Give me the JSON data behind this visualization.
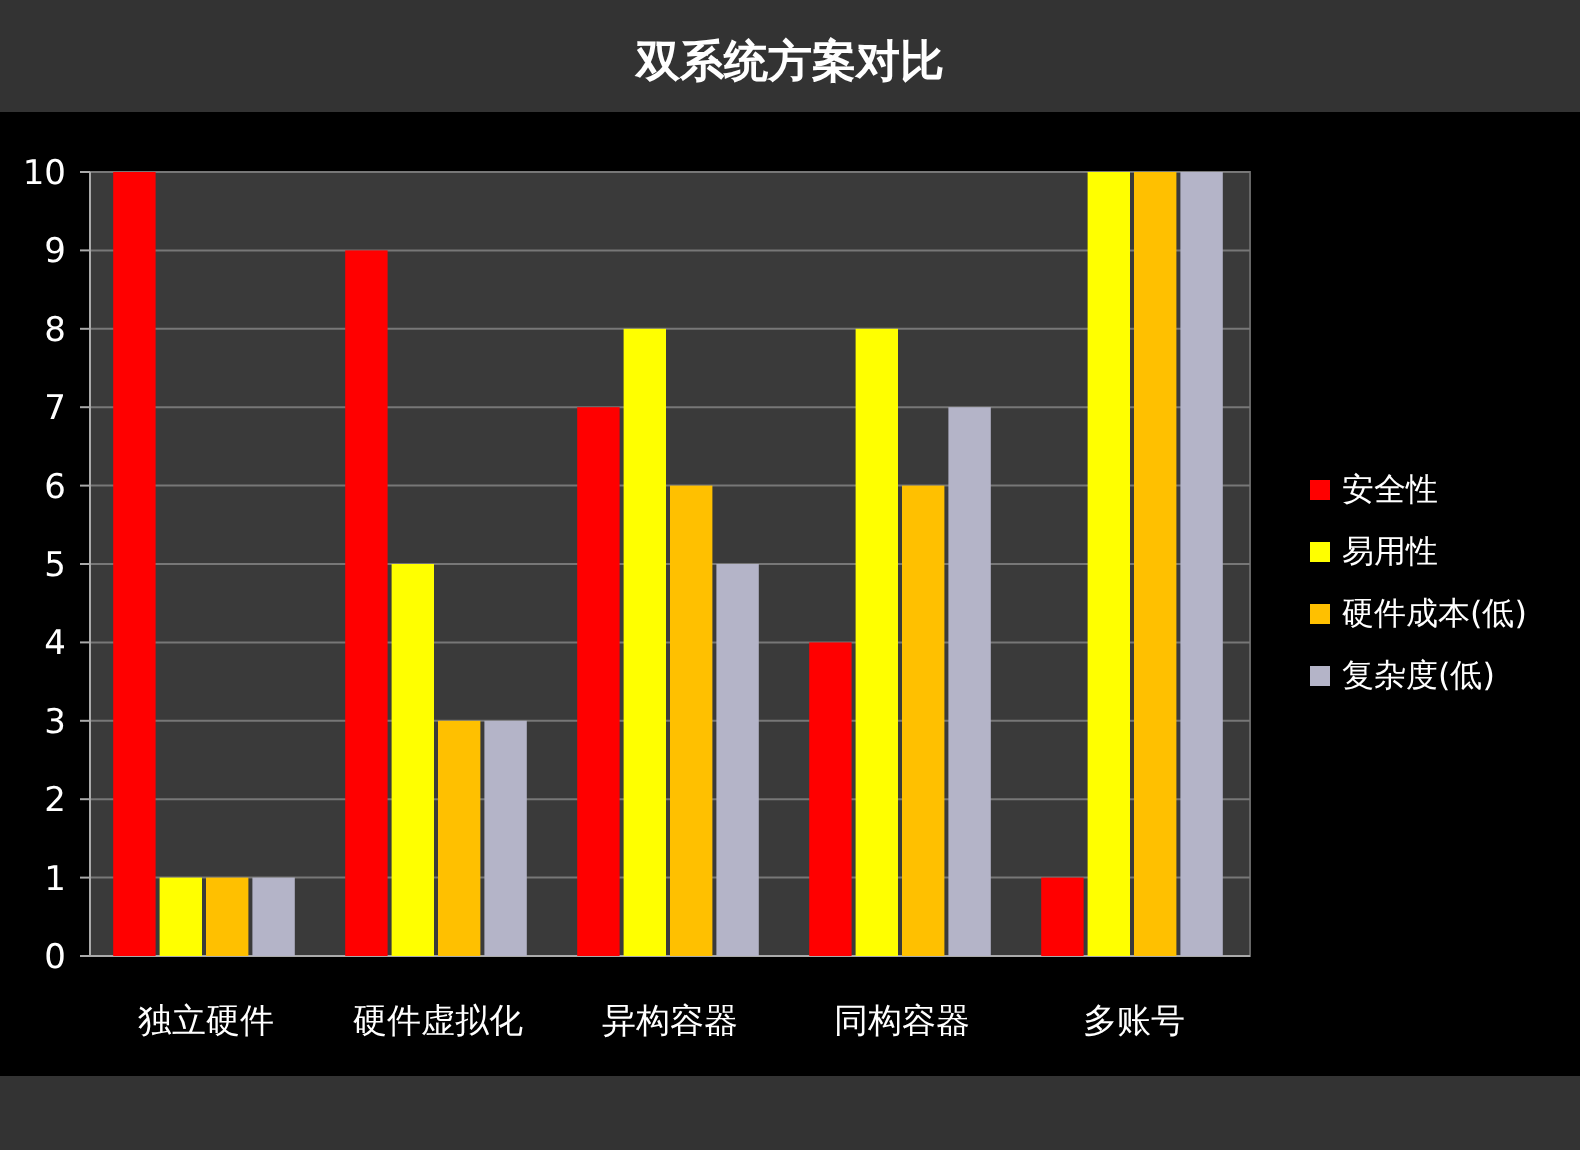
{
  "chart_data": {
    "type": "bar",
    "title": "双系统方案对比",
    "categories": [
      "独立硬件",
      "硬件虚拟化",
      "异构容器",
      "同构容器",
      "多账号"
    ],
    "series": [
      {
        "name": "安全性",
        "color": "#ff0000",
        "values": [
          10,
          9,
          7,
          4,
          1
        ]
      },
      {
        "name": "易用性",
        "color": "#ffff00",
        "values": [
          1,
          5,
          8,
          8,
          10
        ]
      },
      {
        "name": "硬件成本(低)",
        "color": "#ffc000",
        "values": [
          1,
          3,
          6,
          6,
          10
        ]
      },
      {
        "name": "复杂度(低)",
        "color": "#b4b4c8",
        "values": [
          1,
          3,
          5,
          7,
          10
        ]
      }
    ],
    "ylim": [
      0,
      10
    ],
    "yticks": [
      0,
      1,
      2,
      3,
      4,
      5,
      6,
      7,
      8,
      9,
      10
    ],
    "grid": "y",
    "legend": "right"
  }
}
